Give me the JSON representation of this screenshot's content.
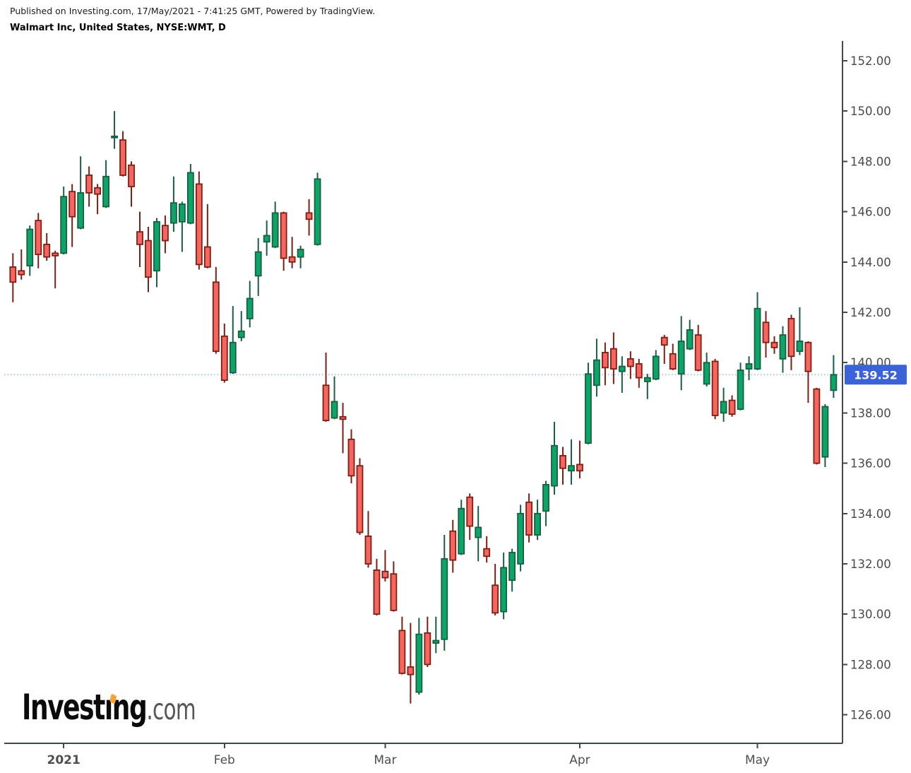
{
  "header": {
    "line1": "Published on Investing.com, 17/May/2021 - 7:41:25 GMT, Powered by TradingView.",
    "line2": "Walmart Inc, United States, NYSE:WMT, D"
  },
  "logo": {
    "part1": "Invest",
    "dotless_i": "ı",
    "part2": "ng",
    "suffix": ".com"
  },
  "colors": {
    "up_fill": "#0CA568",
    "up_stroke": "#1A5E43",
    "down_fill": "#F6655E",
    "down_stroke": "#7E1F15",
    "axis": "#42464D",
    "tick_label": "#4a4a4a",
    "price_line": "#AFC7F3",
    "tag_bg": "#3B62D9",
    "tag_text": "#FFFFFF",
    "logo_dot": "#F7A233"
  },
  "chart_data": {
    "type": "candlestick",
    "title": "Walmart Inc, United States, NYSE:WMT, D",
    "interval": "D",
    "ylim": [
      124.5,
      152.82
    ],
    "y_ticks": [
      152,
      150,
      148,
      146,
      144,
      142,
      140,
      138,
      136,
      134,
      132,
      130,
      128,
      126
    ],
    "x_ticks": [
      {
        "label": "2021",
        "index": 6,
        "year": true
      },
      {
        "label": "Feb",
        "index": 25,
        "year": false
      },
      {
        "label": "Mar",
        "index": 44,
        "year": false
      },
      {
        "label": "Apr",
        "index": 67,
        "year": false
      },
      {
        "label": "May",
        "index": 88,
        "year": false
      }
    ],
    "last_price": {
      "value": 139.52,
      "label": "139.52"
    },
    "candles": [
      [
        143.8,
        144.35,
        142.4,
        143.2
      ],
      [
        143.65,
        144.5,
        143.3,
        143.5
      ],
      [
        143.85,
        145.45,
        143.45,
        145.3
      ],
      [
        145.65,
        145.95,
        143.75,
        144.3
      ],
      [
        144.7,
        145.15,
        144.05,
        144.2
      ],
      [
        144.35,
        144.45,
        142.95,
        144.25
      ],
      [
        144.35,
        147.0,
        144.3,
        146.6
      ],
      [
        146.8,
        147.1,
        144.6,
        145.8
      ],
      [
        145.35,
        148.2,
        145.3,
        146.75
      ],
      [
        147.45,
        147.8,
        146.2,
        146.75
      ],
      [
        146.95,
        147.1,
        145.9,
        146.7
      ],
      [
        146.2,
        148.05,
        146.15,
        147.4
      ],
      [
        148.95,
        150.0,
        148.5,
        149.0
      ],
      [
        148.85,
        149.2,
        147.4,
        147.45
      ],
      [
        147.85,
        148.0,
        146.2,
        147.0
      ],
      [
        145.2,
        146.0,
        143.8,
        144.7
      ],
      [
        144.85,
        145.4,
        142.8,
        143.4
      ],
      [
        143.65,
        145.75,
        143.0,
        145.6
      ],
      [
        145.45,
        145.85,
        144.35,
        144.85
      ],
      [
        145.55,
        147.4,
        145.2,
        146.35
      ],
      [
        145.6,
        146.4,
        144.4,
        146.3
      ],
      [
        145.55,
        147.9,
        145.5,
        147.55
      ],
      [
        147.1,
        147.6,
        143.7,
        143.9
      ],
      [
        144.6,
        146.3,
        143.75,
        143.8
      ],
      [
        143.2,
        143.8,
        140.35,
        140.45
      ],
      [
        141.05,
        141.55,
        139.2,
        139.3
      ],
      [
        139.6,
        142.25,
        139.55,
        140.8
      ],
      [
        141.0,
        142.05,
        140.85,
        141.25
      ],
      [
        141.75,
        143.25,
        141.4,
        142.55
      ],
      [
        143.45,
        144.95,
        142.65,
        144.4
      ],
      [
        144.8,
        145.65,
        144.25,
        145.05
      ],
      [
        144.6,
        146.4,
        144.55,
        145.95
      ],
      [
        145.95,
        146.0,
        143.65,
        144.15
      ],
      [
        144.2,
        145.0,
        143.75,
        144.0
      ],
      [
        144.2,
        144.65,
        143.75,
        144.5
      ],
      [
        145.95,
        146.5,
        145.05,
        145.7
      ],
      [
        144.7,
        147.55,
        144.65,
        147.3
      ],
      [
        139.1,
        140.4,
        137.65,
        137.7
      ],
      [
        137.8,
        139.45,
        137.75,
        138.45
      ],
      [
        137.85,
        138.4,
        136.4,
        137.75
      ],
      [
        136.95,
        137.35,
        135.2,
        135.5
      ],
      [
        135.9,
        136.2,
        133.15,
        133.25
      ],
      [
        133.1,
        134.1,
        131.85,
        132.0
      ],
      [
        131.75,
        132.2,
        129.95,
        130.0
      ],
      [
        131.7,
        132.55,
        131.3,
        131.45
      ],
      [
        131.6,
        132.1,
        130.1,
        130.15
      ],
      [
        129.35,
        129.9,
        127.6,
        127.65
      ],
      [
        127.9,
        129.65,
        126.45,
        127.6
      ],
      [
        126.9,
        129.85,
        126.8,
        129.2
      ],
      [
        129.25,
        129.9,
        127.9,
        128.0
      ],
      [
        128.85,
        129.9,
        128.45,
        128.95
      ],
      [
        129.0,
        133.15,
        128.55,
        132.2
      ],
      [
        133.3,
        133.75,
        131.65,
        132.15
      ],
      [
        132.4,
        134.55,
        132.35,
        134.2
      ],
      [
        134.65,
        134.8,
        132.95,
        133.5
      ],
      [
        133.05,
        134.3,
        132.1,
        133.45
      ],
      [
        132.6,
        133.1,
        132.05,
        132.3
      ],
      [
        131.15,
        132.0,
        129.95,
        130.05
      ],
      [
        130.1,
        132.45,
        129.8,
        131.85
      ],
      [
        131.35,
        132.6,
        130.9,
        132.45
      ],
      [
        132.0,
        134.35,
        131.7,
        134.0
      ],
      [
        134.45,
        134.8,
        132.85,
        133.15
      ],
      [
        133.15,
        134.55,
        132.95,
        134.0
      ],
      [
        134.1,
        135.3,
        133.5,
        135.15
      ],
      [
        135.1,
        137.65,
        134.75,
        136.7
      ],
      [
        136.3,
        136.65,
        135.15,
        135.8
      ],
      [
        135.7,
        136.95,
        135.15,
        135.9
      ],
      [
        135.95,
        136.9,
        135.4,
        135.7
      ],
      [
        136.8,
        140.0,
        136.75,
        139.55
      ],
      [
        139.1,
        140.95,
        138.65,
        140.1
      ],
      [
        140.4,
        140.8,
        139.1,
        139.8
      ],
      [
        140.55,
        141.2,
        139.15,
        139.75
      ],
      [
        139.65,
        140.25,
        138.8,
        139.85
      ],
      [
        140.15,
        140.45,
        139.35,
        139.85
      ],
      [
        139.95,
        140.15,
        139.0,
        139.4
      ],
      [
        139.25,
        139.55,
        138.55,
        139.4
      ],
      [
        139.35,
        140.5,
        139.3,
        140.25
      ],
      [
        141.0,
        141.1,
        139.95,
        140.7
      ],
      [
        140.35,
        140.75,
        139.7,
        139.75
      ],
      [
        139.55,
        141.85,
        138.9,
        140.85
      ],
      [
        140.55,
        141.7,
        140.5,
        141.3
      ],
      [
        141.1,
        141.5,
        139.65,
        139.7
      ],
      [
        139.15,
        140.4,
        139.05,
        140.0
      ],
      [
        140.05,
        140.15,
        137.75,
        137.9
      ],
      [
        138.0,
        139.0,
        137.65,
        138.45
      ],
      [
        138.5,
        138.7,
        137.85,
        137.95
      ],
      [
        138.15,
        140.0,
        138.1,
        139.7
      ],
      [
        139.75,
        140.25,
        139.3,
        139.95
      ],
      [
        139.75,
        142.8,
        139.7,
        142.15
      ],
      [
        141.6,
        142.05,
        140.2,
        140.8
      ],
      [
        140.8,
        141.05,
        140.35,
        140.6
      ],
      [
        140.15,
        141.45,
        139.6,
        141.1
      ],
      [
        141.75,
        141.9,
        139.7,
        140.25
      ],
      [
        140.45,
        142.2,
        140.3,
        140.85
      ],
      [
        140.8,
        140.85,
        138.4,
        139.65
      ],
      [
        138.95,
        139.0,
        135.95,
        136.0
      ],
      [
        136.25,
        138.35,
        135.85,
        138.25
      ],
      [
        138.9,
        140.3,
        138.6,
        139.52
      ]
    ]
  }
}
